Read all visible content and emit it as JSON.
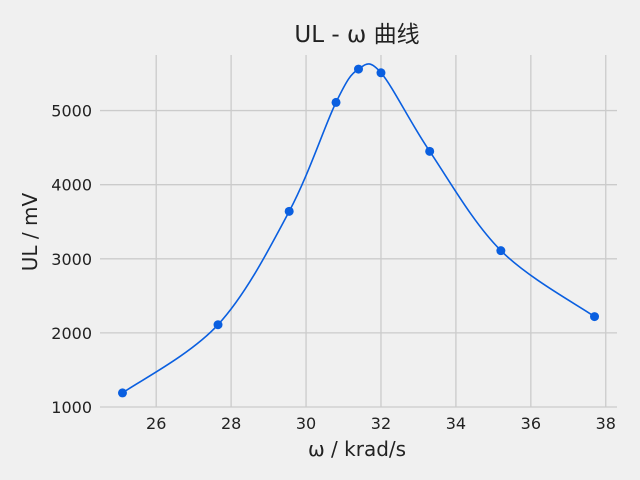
{
  "chart_data": {
    "type": "line",
    "title": "UL - ω 曲线",
    "xlabel": "ω / krad/s",
    "ylabel": "UL / mV",
    "xlim": [
      24.5,
      38.3
    ],
    "ylim": [
      1000,
      5750
    ],
    "xticks": [
      26,
      28,
      30,
      32,
      34,
      36,
      38
    ],
    "yticks": [
      1000,
      2000,
      3000,
      4000,
      5000
    ],
    "grid": true,
    "series": [
      {
        "color": "#0a5fe0",
        "x": [
          25.1,
          27.65,
          29.55,
          30.8,
          31.4,
          32.0,
          33.3,
          35.2,
          37.7
        ],
        "y": [
          1190,
          2110,
          3640,
          5110,
          5560,
          5510,
          4450,
          3110,
          2220
        ]
      }
    ]
  }
}
